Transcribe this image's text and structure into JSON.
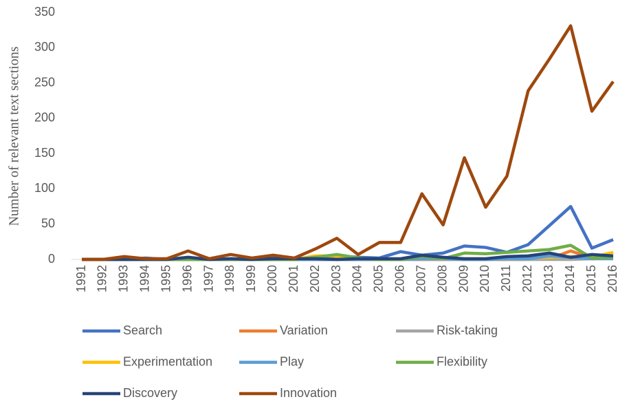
{
  "chart_data": {
    "type": "line",
    "ylabel": "Number of relevant text sections",
    "categories": [
      "1991",
      "1992",
      "1993",
      "1994",
      "1995",
      "1996",
      "1997",
      "1998",
      "1999",
      "2000",
      "2001",
      "2002",
      "2003",
      "2004",
      "2005",
      "2006",
      "2007",
      "2008",
      "2009",
      "2010",
      "2011",
      "2012",
      "2013",
      "2014",
      "2015",
      "2016"
    ],
    "ylim": [
      0,
      350
    ],
    "yticks": [
      0,
      50,
      100,
      150,
      200,
      250,
      300,
      350
    ],
    "grid": false,
    "legend": "bottom",
    "series": [
      {
        "name": "Search",
        "color": "#4472c4",
        "values": [
          0,
          0,
          0,
          2,
          0,
          2,
          0,
          1,
          0,
          2,
          1,
          3,
          5,
          3,
          2,
          11,
          6,
          9,
          19,
          17,
          10,
          21,
          48,
          75,
          16,
          28
        ]
      },
      {
        "name": "Variation",
        "color": "#ed7d31",
        "values": [
          0,
          0,
          0,
          0,
          0,
          0,
          0,
          0,
          0,
          0,
          0,
          0,
          0,
          0,
          0,
          0,
          0,
          0,
          0,
          0,
          0,
          0,
          1,
          12,
          2,
          5
        ]
      },
      {
        "name": "Risk-taking",
        "color": "#a5a5a5",
        "values": [
          0,
          0,
          0,
          0,
          0,
          0,
          0,
          0,
          0,
          0,
          0,
          0,
          0,
          0,
          0,
          0,
          0,
          0,
          0,
          0,
          0,
          0,
          0,
          0,
          1,
          2
        ]
      },
      {
        "name": "Experimentation",
        "color": "#ffc000",
        "values": [
          0,
          0,
          0,
          0,
          0,
          0,
          0,
          0,
          0,
          0,
          0,
          5,
          5,
          1,
          0,
          0,
          2,
          1,
          1,
          1,
          1,
          2,
          3,
          4,
          3,
          10
        ]
      },
      {
        "name": "Play",
        "color": "#5b9bd5",
        "values": [
          0,
          0,
          0,
          0,
          0,
          0,
          0,
          0,
          0,
          0,
          0,
          0,
          0,
          0,
          0,
          0,
          1,
          1,
          0,
          0,
          1,
          1,
          5,
          3,
          1,
          1
        ]
      },
      {
        "name": "Flexibility",
        "color": "#70ad47",
        "values": [
          0,
          0,
          0,
          0,
          0,
          0,
          0,
          0,
          0,
          0,
          0,
          3,
          7,
          2,
          0,
          0,
          4,
          1,
          9,
          8,
          10,
          12,
          14,
          20,
          2,
          3
        ]
      },
      {
        "name": "Discovery",
        "color": "#264478",
        "values": [
          0,
          0,
          0,
          0,
          0,
          3,
          0,
          1,
          0,
          1,
          1,
          1,
          0,
          1,
          1,
          1,
          6,
          3,
          1,
          1,
          4,
          5,
          9,
          3,
          7,
          5
        ]
      },
      {
        "name": "Innovation",
        "color": "#9e480e",
        "values": [
          0,
          0,
          4,
          1,
          1,
          12,
          1,
          7,
          2,
          6,
          2,
          15,
          30,
          7,
          24,
          24,
          93,
          49,
          144,
          74,
          118,
          239,
          284,
          331,
          210,
          252
        ]
      }
    ]
  }
}
